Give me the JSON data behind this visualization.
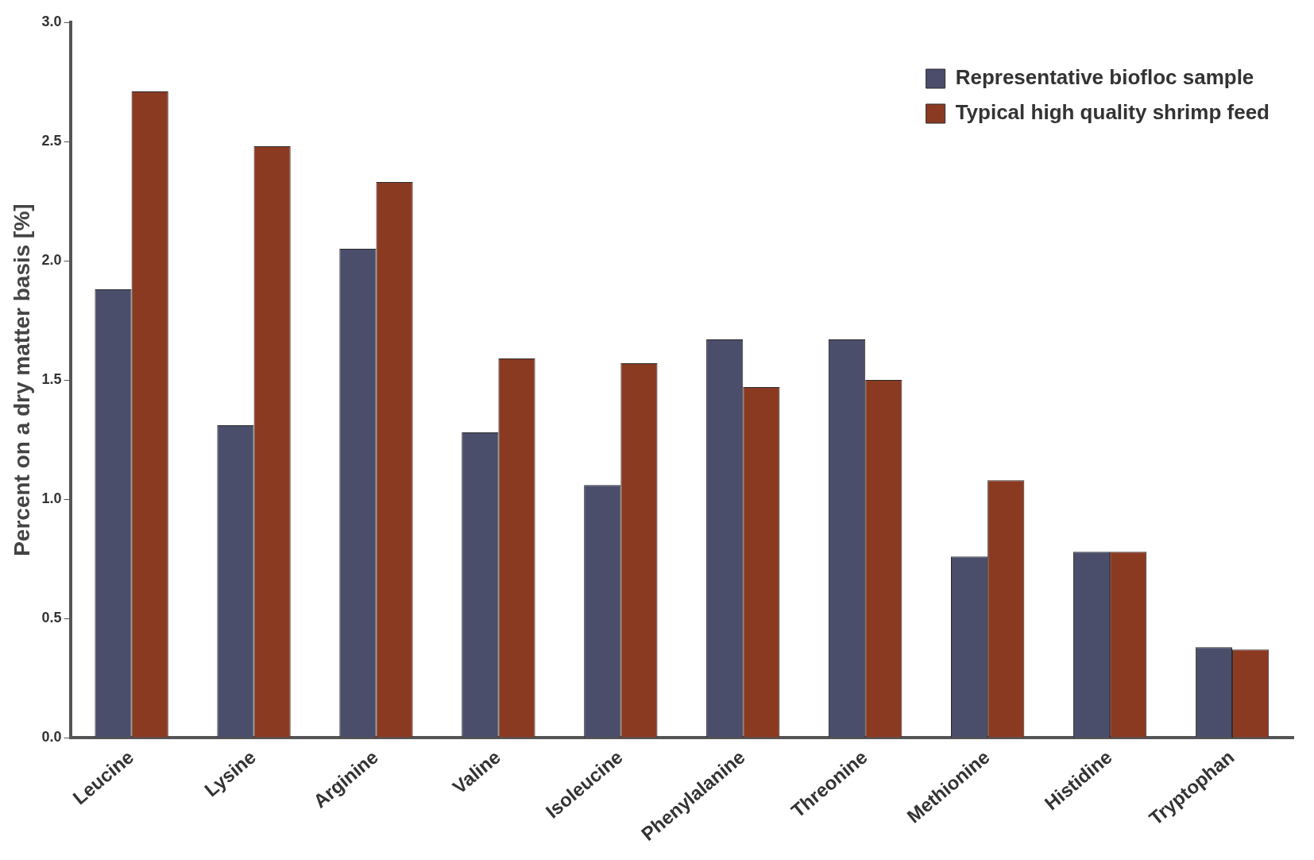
{
  "chart_data": {
    "type": "bar",
    "ylabel": "Percent on a dry matter basis [%]",
    "categories": [
      "Leucine",
      "Lysine",
      "Arginine",
      "Valine",
      "Isoleucine",
      "Phenylalanine",
      "Threonine",
      "Methionine",
      "Histidine",
      "Tryptophan"
    ],
    "series": [
      {
        "name": "Representative biofloc sample",
        "color": "#4a4e6a",
        "values": [
          1.88,
          1.31,
          2.05,
          1.28,
          1.06,
          1.67,
          1.67,
          0.76,
          0.78,
          0.38
        ]
      },
      {
        "name": "Typical high quality shrimp feed",
        "color": "#8b3a22",
        "values": [
          2.71,
          2.48,
          2.33,
          1.59,
          1.57,
          1.47,
          1.5,
          1.08,
          0.78,
          0.37
        ]
      }
    ],
    "ylim": [
      0,
      3
    ],
    "yticks": [
      {
        "value": 0,
        "label": "0.0"
      },
      {
        "value": 0.5,
        "label": "0.5"
      },
      {
        "value": 1,
        "label": "1.0"
      },
      {
        "value": 1.5,
        "label": "1.5"
      },
      {
        "value": 2,
        "label": "2.0"
      },
      {
        "value": 2.5,
        "label": "2.5"
      },
      {
        "value": 3,
        "label": "3.0"
      }
    ],
    "grid": false,
    "legend": "top right"
  }
}
